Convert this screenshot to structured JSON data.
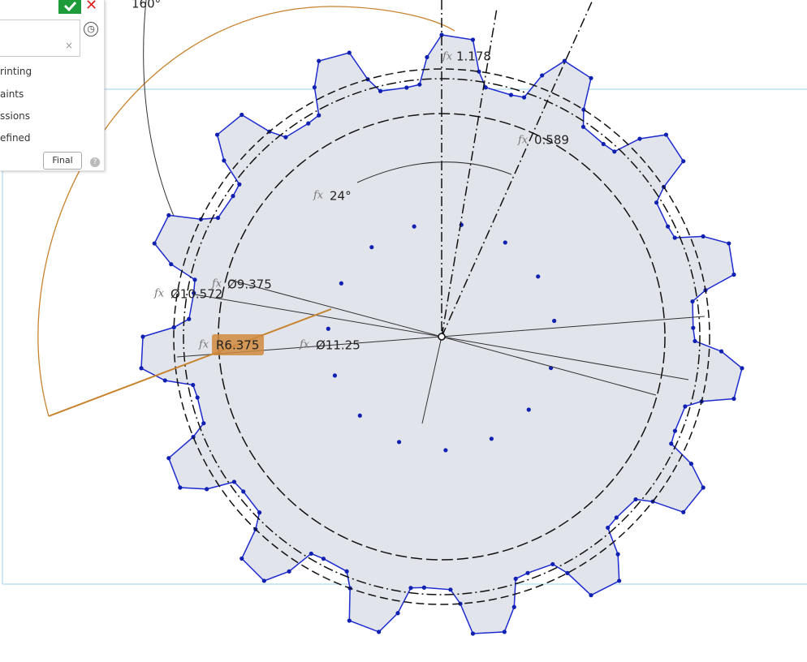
{
  "panel": {
    "items": [
      "rinting",
      "aints",
      "ssions",
      "efined"
    ],
    "button": "Final"
  },
  "sketch": {
    "fx": "fx",
    "dimensions": {
      "angle_top": "160°",
      "tooth_depth": "1.178",
      "tooth_width": "0.589",
      "pitch_angle": "24°",
      "dia_outer": "Ø10.572",
      "dia_root": "Ø9.375",
      "radius": "R6.375",
      "dia_tip": "Ø11.25"
    }
  }
}
